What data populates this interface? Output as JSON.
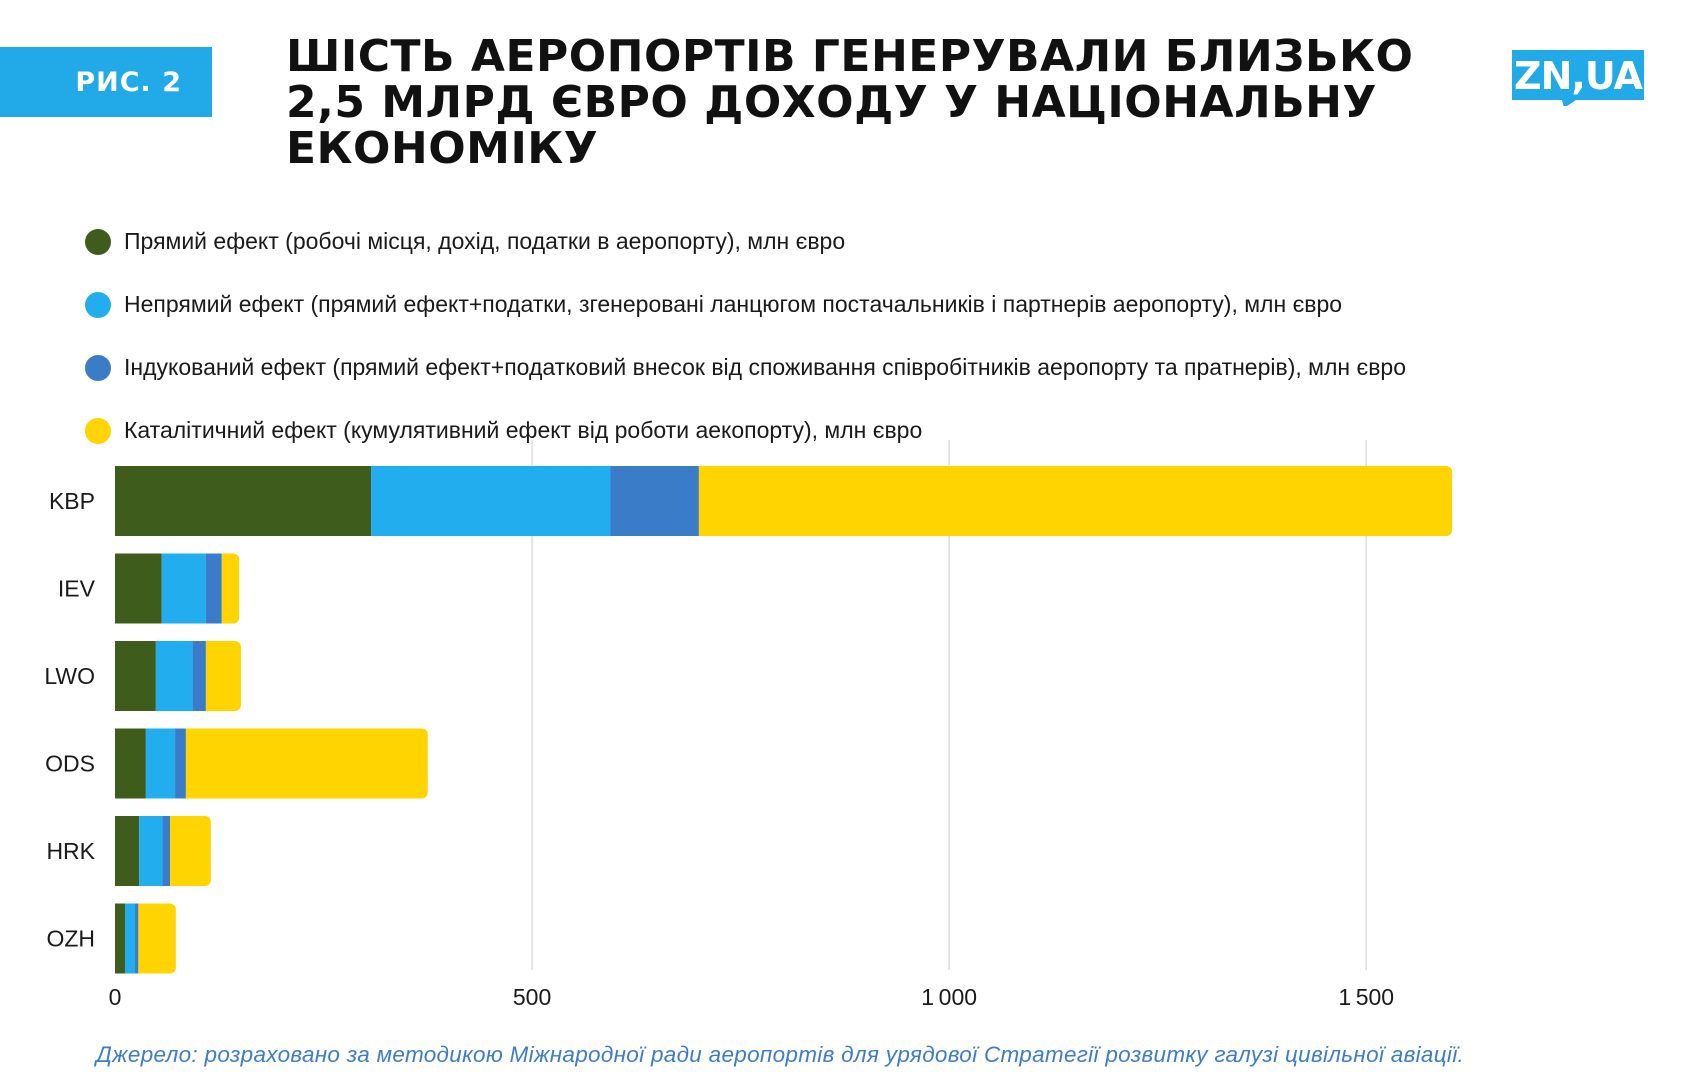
{
  "figure_tag": "РИС. 2",
  "title": "Шість аеропортів генерували близько 2,5 млрд євро доходу у національну економіку",
  "logo_text": "ZN,UA",
  "source": "Джерело: розраховано за методикою Міжнародної ради аеропортів для урядової Стратегії розвитку галузі цивільної авіації.",
  "colors": {
    "direct": "#3e5d1c",
    "indirect": "#22aeee",
    "induced": "#3b7cc8",
    "catalytic": "#ffd400",
    "brand": "#22a9e8",
    "grid": "#dddddd"
  },
  "chart_data": {
    "type": "bar",
    "orientation": "horizontal",
    "stacked": true,
    "categories": [
      "KBP",
      "IEV",
      "LWO",
      "ODS",
      "HRK",
      "OZH"
    ],
    "series": [
      {
        "name": "Прямий ефект (робочі місця, дохід, податки в аеропорту), млн євро",
        "values": [
          307,
          56,
          49,
          37,
          29,
          12
        ]
      },
      {
        "name": "Непрямий ефект (прямий ефект+податки, згенеровані ланцюгом постачальників і партнерів аеропорту), млн євро",
        "values": [
          287,
          53,
          44,
          35,
          28,
          12
        ]
      },
      {
        "name": "Індукований ефект (прямий ефект+податковий внесок від споживання співробітників аеропорту та пратнерів), млн євро",
        "values": [
          106,
          19,
          16,
          13,
          9,
          4
        ]
      },
      {
        "name": "Каталітичний ефект (кумулятивний ефект від роботи аекопорту), млн євро",
        "values": [
          903,
          21,
          42,
          290,
          49,
          45
        ]
      }
    ],
    "xlim": [
      0,
      1640
    ],
    "xticks": [
      0,
      500,
      1000,
      1500
    ],
    "xlabel": "",
    "ylabel": "",
    "grid": true,
    "legend_position": "top-left"
  }
}
